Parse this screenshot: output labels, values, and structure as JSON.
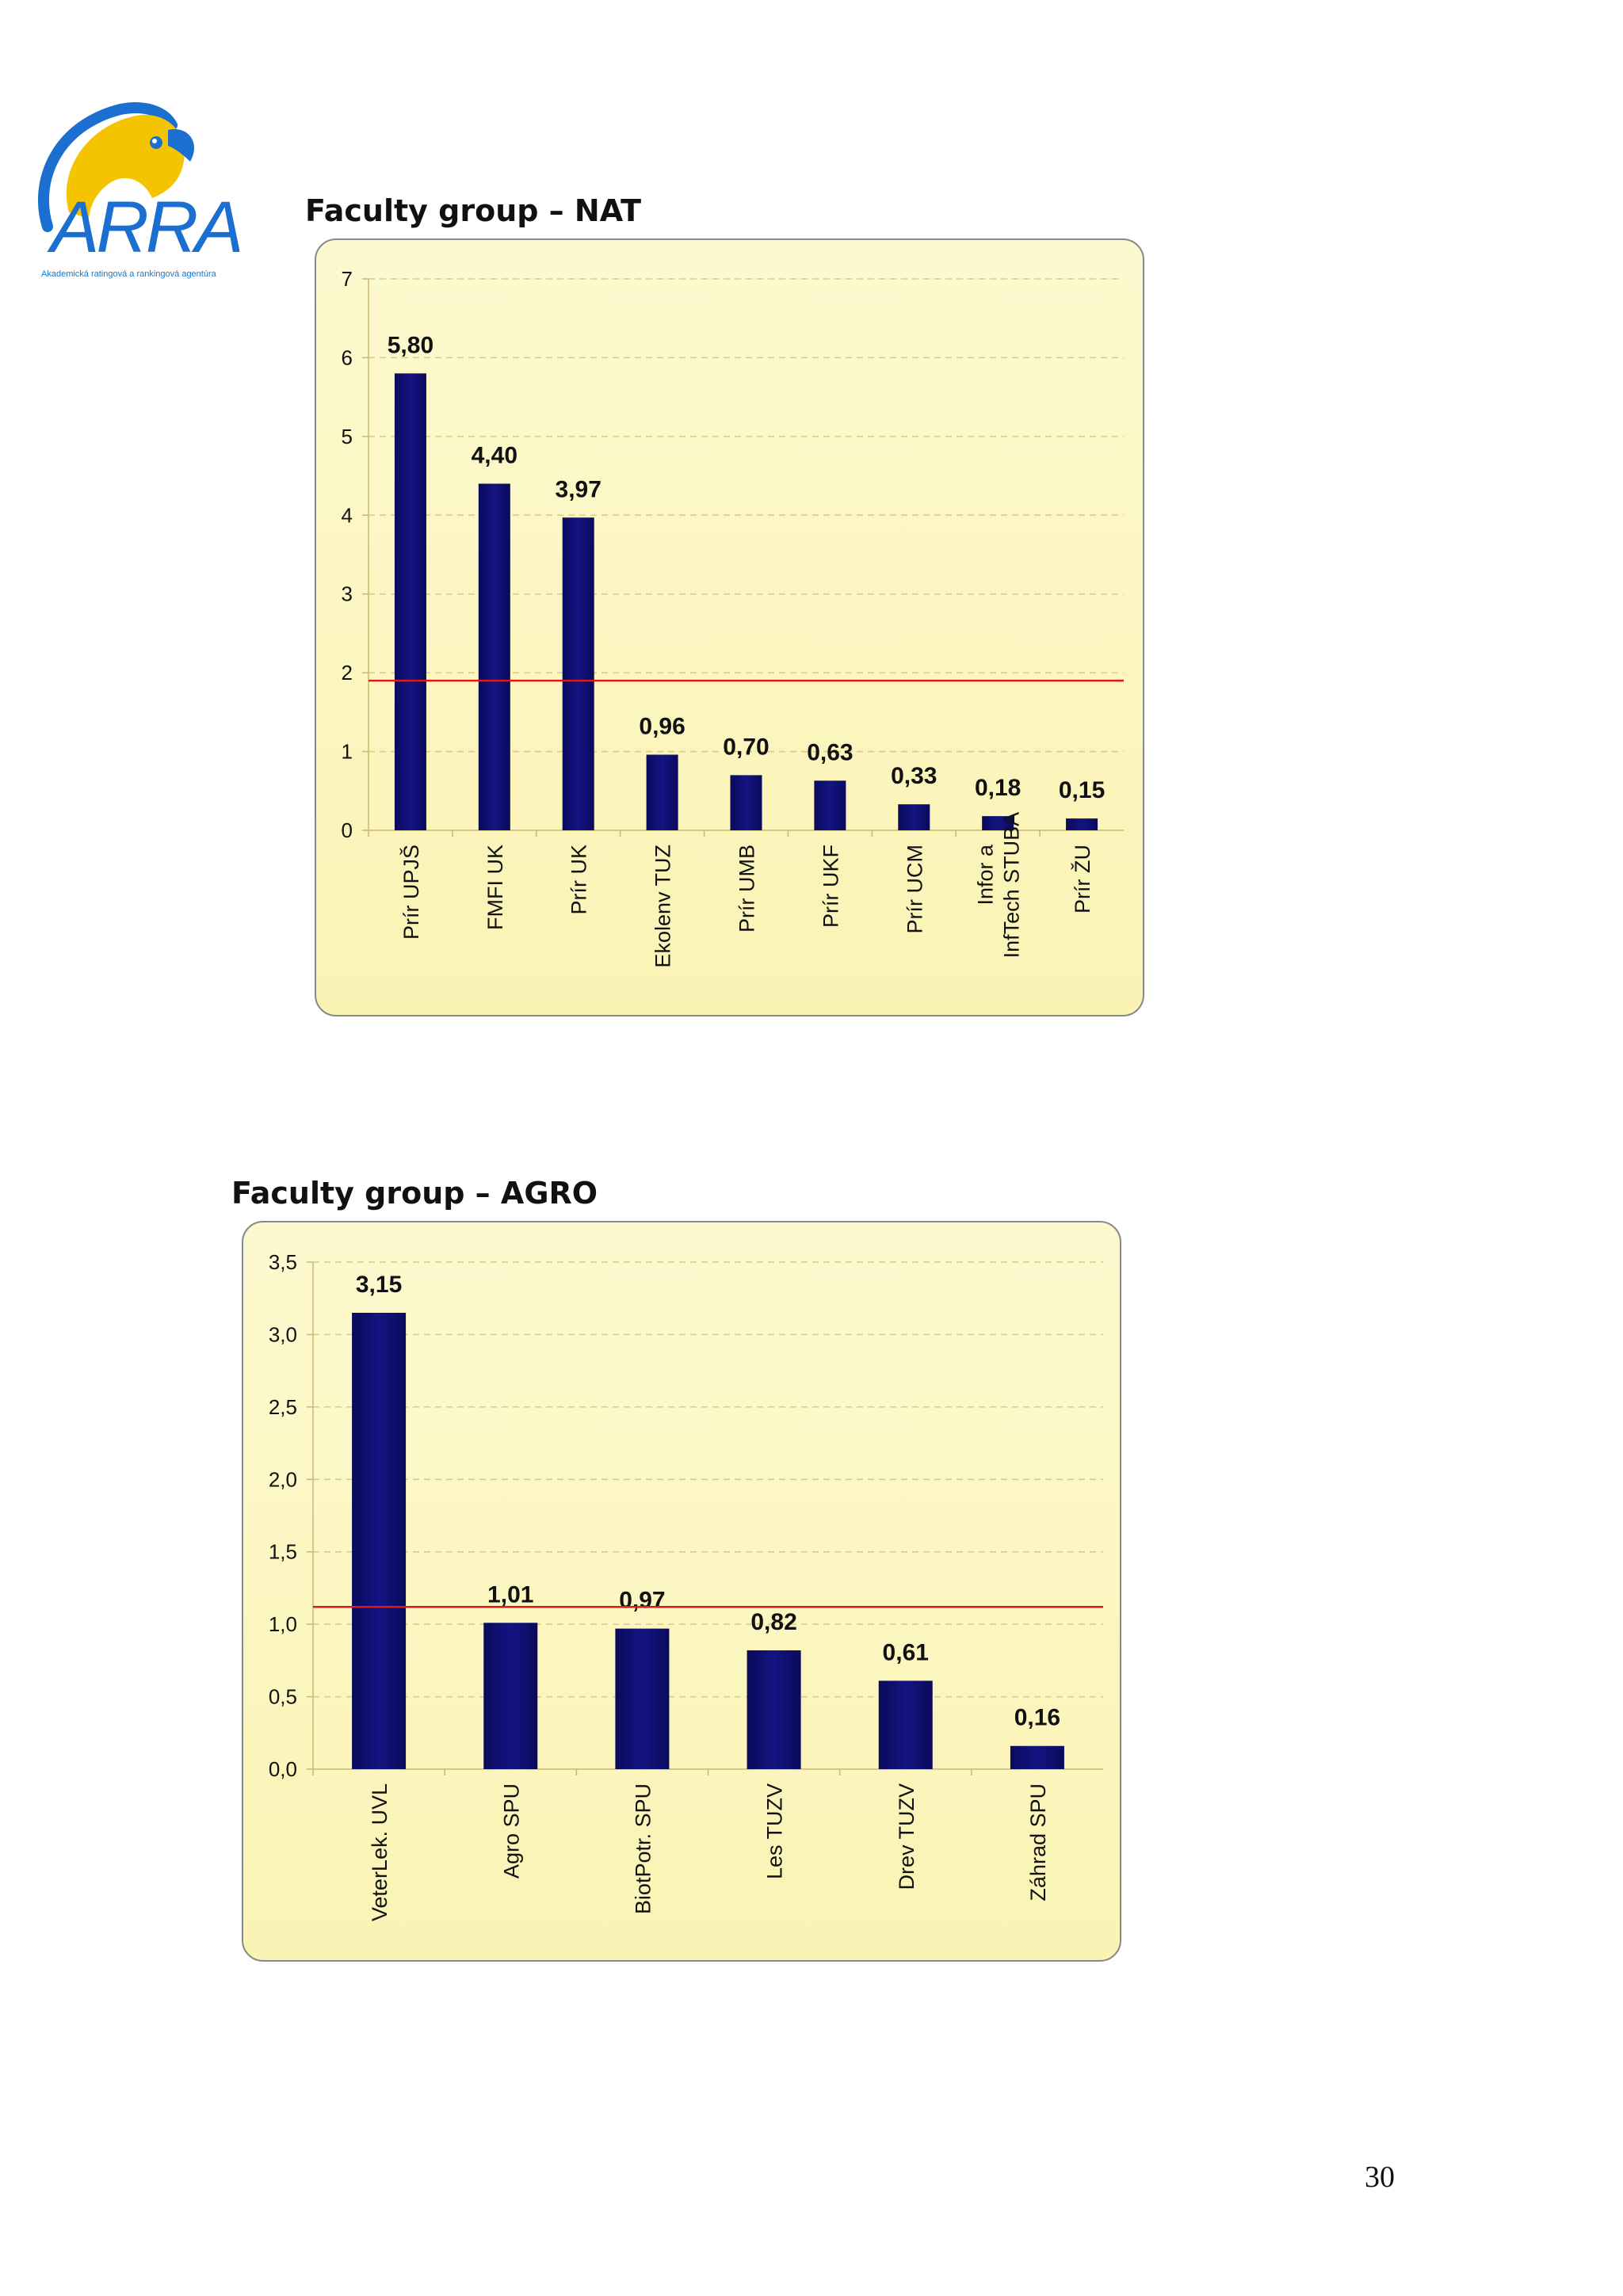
{
  "logo": {
    "text": "ARRA",
    "subtitle": "Akademická ratingová a rankingová agentúra",
    "colors": {
      "blue": "#1a6fd0",
      "yellow": "#f5c400"
    }
  },
  "page_number": "30",
  "colors": {
    "bar": "#0c0c66",
    "plot_background": "#fcf8c2",
    "reference_line": "#e01818",
    "grid": "#d9c98a"
  },
  "chart_data": [
    {
      "type": "bar",
      "section_title": "Faculty group – NAT",
      "categories": [
        "Prír UPJŠ",
        "FMFI UK",
        "Prír UK",
        "Ekolenv TUZ",
        "Prír UMB",
        "Prír UKF",
        "Prír UCM",
        "Infor a InfTech STUBA",
        "Prír ŽU"
      ],
      "values": [
        5.8,
        4.4,
        3.97,
        0.96,
        0.7,
        0.63,
        0.33,
        0.18,
        0.15
      ],
      "value_labels": [
        "5,80",
        "4,40",
        "3,97",
        "0,96",
        "0,70",
        "0,63",
        "0,33",
        "0,18",
        "0,15"
      ],
      "reference_line": 1.9,
      "ylim": [
        0,
        7
      ],
      "yticks": [
        0,
        1,
        2,
        3,
        4,
        5,
        6,
        7
      ],
      "ytick_labels": [
        "0",
        "1",
        "2",
        "3",
        "4",
        "5",
        "6",
        "7"
      ],
      "grid": true,
      "legend": "none"
    },
    {
      "type": "bar",
      "section_title": "Faculty group – AGRO",
      "categories": [
        "VeterLek. UVL",
        "Agro SPU",
        "BiotPotr. SPU",
        "Les TUZV",
        "Drev TUZV",
        "Záhrad SPU"
      ],
      "values": [
        3.15,
        1.01,
        0.97,
        0.82,
        0.61,
        0.16
      ],
      "value_labels": [
        "3,15",
        "1,01",
        "0,97",
        "0,82",
        "0,61",
        "0,16"
      ],
      "reference_line": 1.12,
      "ylim": [
        0,
        3.5
      ],
      "yticks": [
        0,
        0.5,
        1.0,
        1.5,
        2.0,
        2.5,
        3.0,
        3.5
      ],
      "ytick_labels": [
        "0,0",
        "0,5",
        "1,0",
        "1,5",
        "2,0",
        "2,5",
        "3,0",
        "3,5"
      ],
      "grid": true,
      "legend": "none"
    }
  ]
}
